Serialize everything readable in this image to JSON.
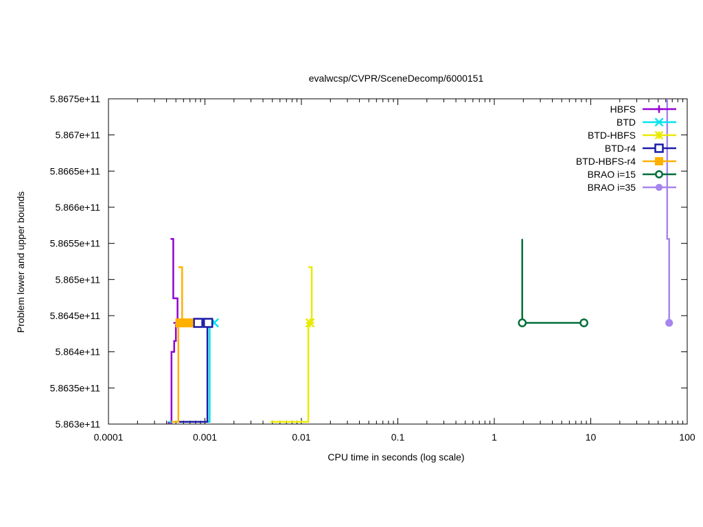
{
  "chart_data": {
    "type": "line",
    "title": "evalwcsp/CVPR/SceneDecomp/6000151",
    "xlabel": "CPU time in seconds (log scale)",
    "ylabel": "Problem lower and upper bounds",
    "xscale": "log",
    "xlim": [
      0.0001,
      100
    ],
    "ylim": [
      586300000000,
      586750000000
    ],
    "xticks": [
      {
        "value": 0.0001,
        "label": "0.0001"
      },
      {
        "value": 0.001,
        "label": "0.001"
      },
      {
        "value": 0.01,
        "label": "0.01"
      },
      {
        "value": 0.1,
        "label": "0.1"
      },
      {
        "value": 1,
        "label": "1"
      },
      {
        "value": 10,
        "label": "10"
      },
      {
        "value": 100,
        "label": "100"
      }
    ],
    "yticks": [
      {
        "value": 586300000000,
        "label": "5.863e+11"
      },
      {
        "value": 586350000000,
        "label": "5.8635e+11"
      },
      {
        "value": 586400000000,
        "label": "5.864e+11"
      },
      {
        "value": 586450000000,
        "label": "5.8645e+11"
      },
      {
        "value": 586500000000,
        "label": "5.865e+11"
      },
      {
        "value": 586550000000,
        "label": "5.8655e+11"
      },
      {
        "value": 586600000000,
        "label": "5.866e+11"
      },
      {
        "value": 586650000000,
        "label": "5.8665e+11"
      },
      {
        "value": 586700000000,
        "label": "5.867e+11"
      },
      {
        "value": 586750000000,
        "label": "5.8675e+11"
      }
    ],
    "grid": false,
    "legend_position": "top-right",
    "series": [
      {
        "name": "HBFS",
        "color": "#9400d3",
        "marker": "plus",
        "lower": [
          [
            0.00041,
            586302000000
          ],
          [
            0.00045,
            586302000000
          ],
          [
            0.00045,
            586400000000
          ],
          [
            0.00048,
            586400000000
          ],
          [
            0.00048,
            586415000000
          ],
          [
            0.0005,
            586415000000
          ],
          [
            0.0005,
            586438000000
          ]
        ],
        "upper": [
          [
            0.00044,
            586556000000
          ],
          [
            0.00047,
            586556000000
          ],
          [
            0.00047,
            586474000000
          ],
          [
            0.00052,
            586474000000
          ],
          [
            0.00052,
            586441000000
          ]
        ],
        "markers": [
          [
            0.00052,
            586440000000
          ]
        ]
      },
      {
        "name": "BTD",
        "color": "#00e5ee",
        "marker": "x",
        "lower": [
          [
            0.00042,
            586303000000
          ],
          [
            0.00112,
            586303000000
          ],
          [
            0.00112,
            586440000000
          ]
        ],
        "upper": [
          [
            0.00112,
            586443000000
          ],
          [
            0.00125,
            586443000000
          ]
        ],
        "markers": [
          [
            0.00125,
            586440000000
          ]
        ]
      },
      {
        "name": "BTD-HBFS",
        "color": "#eaea00",
        "marker": "star",
        "lower": [
          [
            0.0048,
            586303000000
          ],
          [
            0.0118,
            586303000000
          ],
          [
            0.0118,
            586440000000
          ]
        ],
        "upper": [
          [
            0.0118,
            586517000000
          ],
          [
            0.0128,
            586517000000
          ],
          [
            0.0128,
            586440000000
          ]
        ],
        "markers": [
          [
            0.0123,
            586440000000
          ]
        ]
      },
      {
        "name": "BTD-r4",
        "color": "#1a1aa6",
        "marker": "square-open",
        "lower": [
          [
            0.00045,
            586303000000
          ],
          [
            0.00106,
            586303000000
          ],
          [
            0.00106,
            586440000000
          ]
        ],
        "upper": [
          [
            0.00085,
            586440000000
          ],
          [
            0.00108,
            586440000000
          ]
        ],
        "markers": [
          [
            0.00085,
            586440000000
          ],
          [
            0.00108,
            586440000000
          ]
        ]
      },
      {
        "name": "BTD-HBFS-r4",
        "color": "#ffb000",
        "marker": "square-filled",
        "lower": [
          [
            0.00045,
            586303000000
          ],
          [
            0.00053,
            586303000000
          ],
          [
            0.00053,
            586440000000
          ],
          [
            0.00068,
            586440000000
          ]
        ],
        "upper": [
          [
            0.00053,
            586517000000
          ],
          [
            0.00058,
            586517000000
          ],
          [
            0.00058,
            586440000000
          ]
        ],
        "markers": [
          [
            0.00055,
            586440000000
          ],
          [
            0.00068,
            586440000000
          ]
        ]
      },
      {
        "name": "BRAO i=15",
        "color": "#006e38",
        "marker": "circle-open",
        "lower": [
          [
            1.95,
            586556000000
          ],
          [
            1.95,
            586440000000
          ],
          [
            8.5,
            586440000000
          ]
        ],
        "upper": [],
        "markers": [
          [
            1.95,
            586440000000
          ],
          [
            8.5,
            586440000000
          ]
        ]
      },
      {
        "name": "BRAO i=35",
        "color": "#a785ee",
        "marker": "circle-filled",
        "lower": [
          [
            62,
            586750000000
          ],
          [
            62,
            586556000000
          ],
          [
            65,
            586556000000
          ],
          [
            65,
            586440000000
          ]
        ],
        "upper": [],
        "markers": [
          [
            65,
            586440000000
          ]
        ]
      }
    ]
  }
}
